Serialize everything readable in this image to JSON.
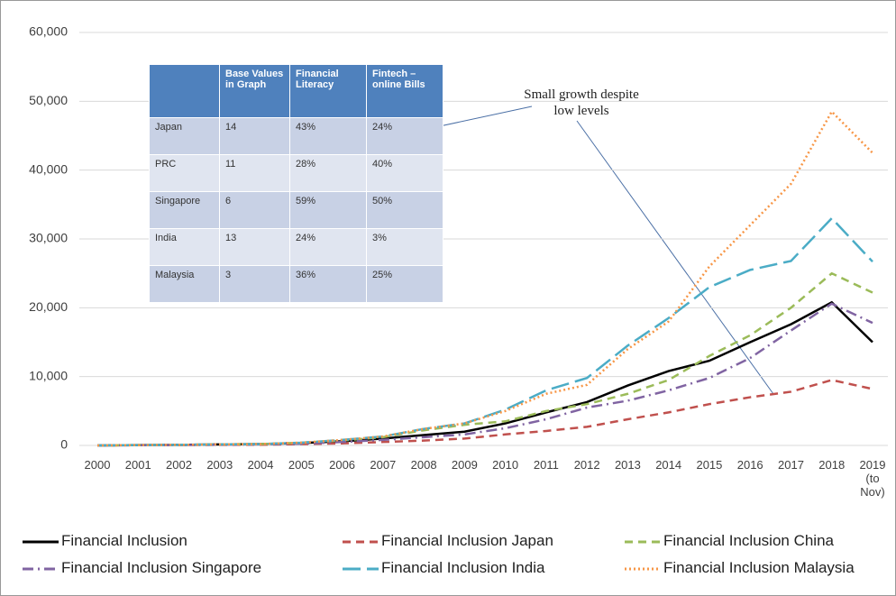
{
  "chart_data": {
    "type": "line",
    "categories": [
      "2000",
      "2001",
      "2002",
      "2003",
      "2004",
      "2005",
      "2006",
      "2007",
      "2008",
      "2009",
      "2010",
      "2011",
      "2012",
      "2013",
      "2014",
      "2015",
      "2016",
      "2017",
      "2018",
      "2019 (to Nov)"
    ],
    "ylim": [
      0,
      60000
    ],
    "yticks": [
      0,
      {
        "value": 10000,
        "label": "10,000"
      },
      {
        "value": 20000,
        "label": "20,000"
      },
      {
        "value": 30000,
        "label": "30,000"
      },
      {
        "value": 40000,
        "label": "40,000"
      },
      {
        "value": 50000,
        "label": "50,000"
      },
      {
        "value": 60000,
        "label": "60,000"
      }
    ],
    "grid": true,
    "legend": "bottom",
    "series": [
      {
        "name": "Financial Inclusion",
        "color": "#000000",
        "line_style": "solid",
        "values": [
          0,
          50,
          80,
          150,
          200,
          350,
          600,
          1000,
          1500,
          2000,
          3200,
          4800,
          6300,
          8700,
          10800,
          12300,
          15000,
          17600,
          20800,
          15000
        ]
      },
      {
        "name": "Financial Inclusion Japan",
        "color": "#c0504d",
        "line_style": "dashed",
        "values": [
          0,
          30,
          50,
          80,
          100,
          200,
          300,
          500,
          700,
          1000,
          1600,
          2100,
          2700,
          3800,
          4800,
          6000,
          7000,
          7800,
          9500,
          8200
        ]
      },
      {
        "name": "Financial Inclusion China",
        "color": "#9bbb59",
        "line_style": "dashed",
        "values": [
          0,
          50,
          80,
          150,
          200,
          400,
          700,
          1200,
          2200,
          3000,
          3500,
          5000,
          6000,
          7500,
          9500,
          13000,
          16000,
          20000,
          25000,
          22200
        ]
      },
      {
        "name": "Financial Inclusion Singapore",
        "color": "#8064a2",
        "line_style": "dashdot",
        "values": [
          0,
          30,
          50,
          100,
          150,
          250,
          500,
          800,
          1200,
          1600,
          2500,
          3800,
          5500,
          6500,
          8000,
          9800,
          12700,
          16700,
          20600,
          17800
        ]
      },
      {
        "name": "Financial Inclusion India",
        "color": "#4bacc6",
        "line_style": "longdash",
        "values": [
          0,
          50,
          80,
          150,
          200,
          400,
          800,
          1300,
          2400,
          3200,
          5200,
          8000,
          9800,
          14500,
          18500,
          23000,
          25500,
          26800,
          33000,
          26700
        ]
      },
      {
        "name": "Financial Inclusion Malaysia",
        "color": "#f79646",
        "line_style": "dotted",
        "values": [
          0,
          50,
          80,
          150,
          200,
          400,
          800,
          1300,
          2400,
          3200,
          5000,
          7500,
          8800,
          14000,
          18000,
          26000,
          32000,
          38000,
          48500,
          42500
        ]
      }
    ],
    "annotation": "Small growth despite low levels",
    "table": {
      "header": [
        "Base Values in Graph",
        "Financial Literacy",
        "Fintech – online Bills"
      ],
      "rows": [
        [
          "Japan",
          "14",
          "43%",
          "24%"
        ],
        [
          "PRC",
          "11",
          "28%",
          "40%"
        ],
        [
          "Singapore",
          "6",
          "59%",
          "50%"
        ],
        [
          "India",
          "13",
          "24%",
          "3%"
        ],
        [
          "Malaysia",
          "3",
          "36%",
          "25%"
        ]
      ]
    }
  }
}
